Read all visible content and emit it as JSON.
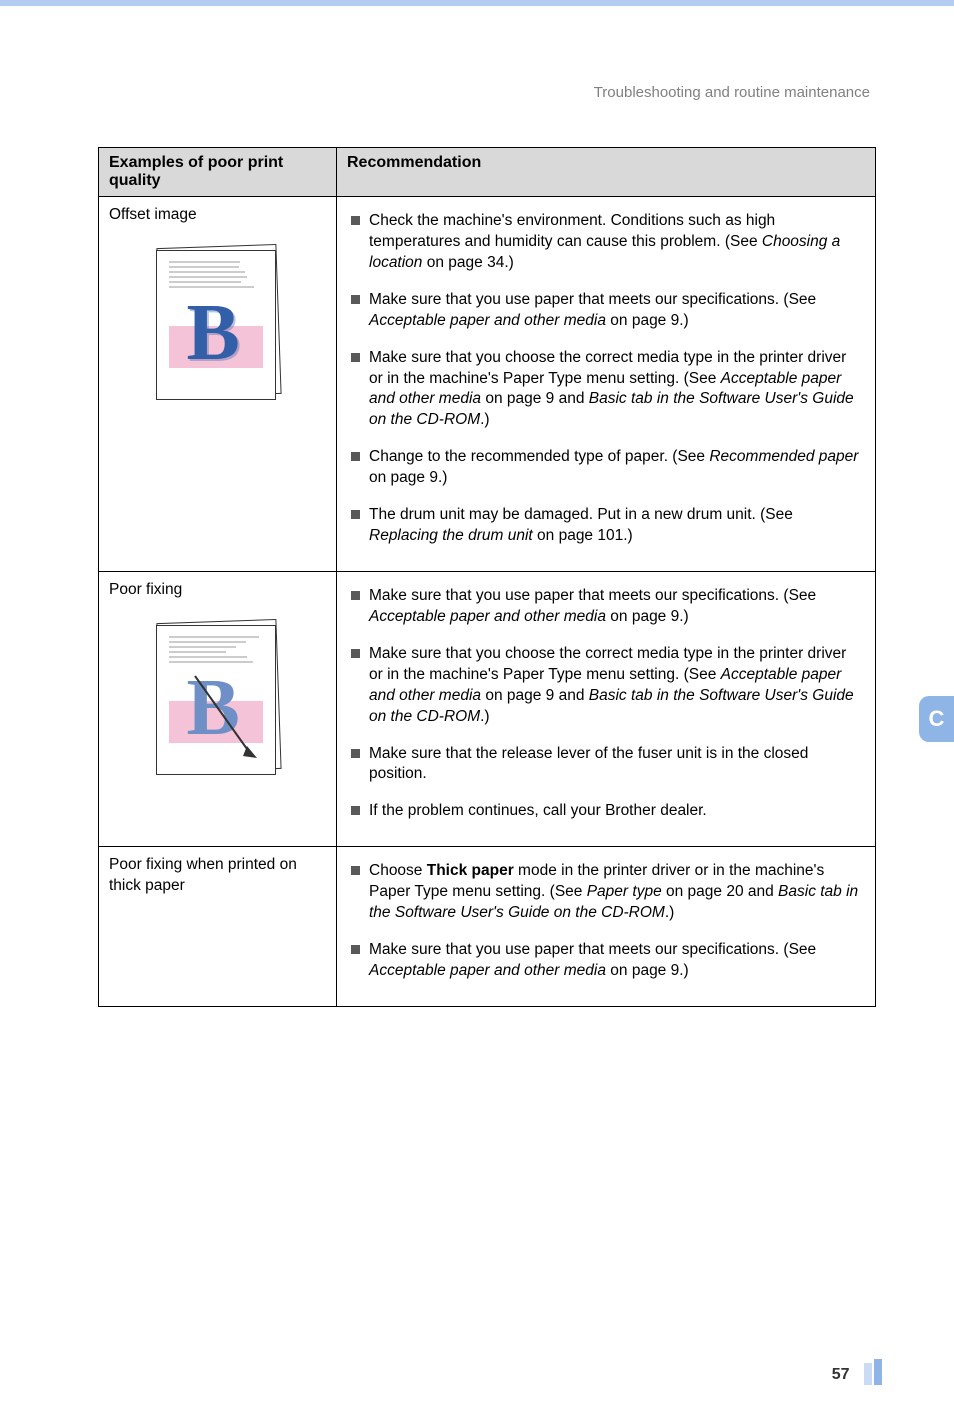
{
  "header": {
    "title": "Troubleshooting and routine maintenance"
  },
  "table": {
    "col1_header": "Examples of poor print quality",
    "col2_header": "Recommendation",
    "rows": [
      {
        "example_title": "Offset image",
        "sample_kind": "offset",
        "recs": [
          {
            "segments": [
              {
                "t": "Check the machine's environment. Conditions such as high temperatures and humidity can cause this problem. (See "
              },
              {
                "t": "Choosing a location",
                "i": true
              },
              {
                "t": " on page 34.)"
              }
            ]
          },
          {
            "segments": [
              {
                "t": "Make sure that you use paper that meets our specifications. (See "
              },
              {
                "t": "Acceptable paper and other media",
                "i": true
              },
              {
                "t": " on page 9.)"
              }
            ]
          },
          {
            "segments": [
              {
                "t": "Make sure that you choose the correct media type in the printer driver or in the machine's Paper Type menu setting. (See "
              },
              {
                "t": "Acceptable paper and other media",
                "i": true
              },
              {
                "t": " on page 9 and "
              },
              {
                "t": "Basic tab in the Software User's Guide on the CD-ROM",
                "i": true
              },
              {
                "t": ".)"
              }
            ]
          },
          {
            "segments": [
              {
                "t": "Change to the recommended type of paper. (See "
              },
              {
                "t": "Recommended paper",
                "i": true
              },
              {
                "t": " on page 9.)"
              }
            ]
          },
          {
            "segments": [
              {
                "t": "The drum unit may be damaged. Put in a new drum unit. (See "
              },
              {
                "t": "Replacing the drum unit",
                "i": true
              },
              {
                "t": " on page 101.)"
              }
            ]
          }
        ]
      },
      {
        "example_title": "Poor fixing",
        "sample_kind": "poorfix",
        "recs": [
          {
            "segments": [
              {
                "t": "Make sure that you use paper that meets our specifications. (See "
              },
              {
                "t": "Acceptable paper and other media",
                "i": true
              },
              {
                "t": " on page 9.)"
              }
            ]
          },
          {
            "segments": [
              {
                "t": "Make sure that you choose the correct media type in the printer driver or in the machine's Paper Type menu setting. (See "
              },
              {
                "t": "Acceptable paper and other media",
                "i": true
              },
              {
                "t": " on page 9 and "
              },
              {
                "t": "Basic tab in the Software User's Guide on the CD-ROM",
                "i": true
              },
              {
                "t": ".)"
              }
            ]
          },
          {
            "segments": [
              {
                "t": "Make sure that the release lever of the fuser unit is in the closed position."
              }
            ]
          },
          {
            "segments": [
              {
                "t": "If the problem continues, call your Brother dealer."
              }
            ]
          }
        ]
      },
      {
        "example_title": "Poor fixing when printed on thick paper",
        "sample_kind": "none",
        "recs": [
          {
            "segments": [
              {
                "t": "Choose "
              },
              {
                "t": "Thick paper",
                "b": true
              },
              {
                "t": " mode in the printer driver or in the machine's Paper Type menu setting. (See "
              },
              {
                "t": "Paper type",
                "i": true
              },
              {
                "t": " on page 20 and "
              },
              {
                "t": "Basic tab in the Software User's Guide on the CD-ROM",
                "i": true
              },
              {
                "t": ".)"
              }
            ]
          },
          {
            "segments": [
              {
                "t": "Make sure that you use paper that meets our specifications. (See "
              },
              {
                "t": "Acceptable paper and other media",
                "i": true
              },
              {
                "t": " on page 9.)"
              }
            ]
          }
        ]
      }
    ]
  },
  "side_tab": {
    "label": "C",
    "bg": "#8fb4e6",
    "fg": "#ffffff"
  },
  "footer": {
    "page_number": "57"
  },
  "colors": {
    "topbar": "#b3cdf2",
    "th_bg": "#d9d9d9",
    "bullet": "#595959",
    "link_blue": "#335ea8",
    "pink": "#f5c3d8"
  }
}
